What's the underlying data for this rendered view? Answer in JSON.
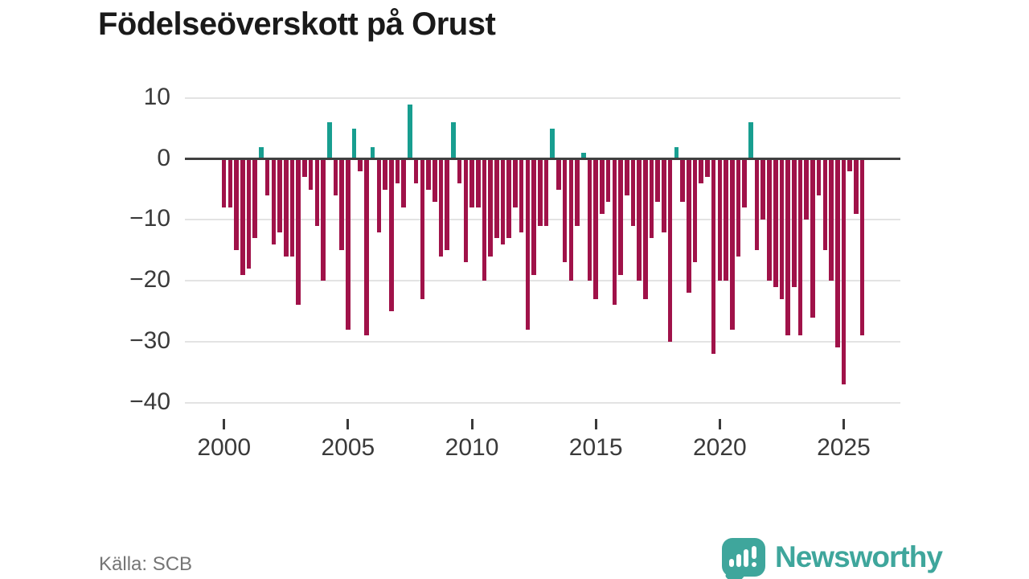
{
  "title": "Födelseöverskott på Orust",
  "source": "Källa: SCB",
  "logo": {
    "text": "Newsworthy"
  },
  "colors": {
    "bar_negative": "#a01249",
    "bar_positive": "#189e90",
    "logo_teal": "#3fa69c",
    "grid": "#e3e3e3",
    "zero_line": "#404040",
    "axis_text": "#3a3a3a",
    "source_text": "#757575"
  },
  "chart_data": {
    "type": "bar",
    "title": "Födelseöverskott på Orust",
    "xlabel": "",
    "ylabel": "",
    "x_start": "2000-Q1",
    "x_end": "2025-Q4",
    "frequency": "quarterly",
    "ylim": [
      -40,
      10
    ],
    "grid": true,
    "y_ticks": [
      10,
      0,
      -10,
      -20,
      -30,
      -40
    ],
    "y_tick_labels": [
      "10",
      "0",
      "−10",
      "−20",
      "−30",
      "−40"
    ],
    "x_tick_labels": [
      "2000",
      "2005",
      "2010",
      "2015",
      "2020",
      "2025"
    ],
    "x_tick_quarter_offsets": [
      0,
      20,
      40,
      60,
      80,
      100
    ],
    "series": [
      {
        "name": "Födelseöverskott",
        "values": [
          -8,
          -8,
          -15,
          -19,
          -18,
          -13,
          2,
          -6,
          -14,
          -12,
          -16,
          -16,
          -24,
          -3,
          -5,
          -11,
          -20,
          6,
          -6,
          -15,
          -28,
          5,
          -2,
          -29,
          2,
          -12,
          -5,
          -25,
          -4,
          -8,
          9,
          -4,
          -23,
          -5,
          -7,
          -16,
          -15,
          6,
          -4,
          -17,
          -8,
          -8,
          -20,
          -16,
          -13,
          -14,
          -13,
          -8,
          -12,
          -28,
          -19,
          -11,
          -11,
          5,
          -5,
          -17,
          -20,
          -11,
          1,
          -20,
          -23,
          -9,
          -7,
          -24,
          -19,
          -6,
          -11,
          -20,
          -23,
          -13,
          -7,
          -12,
          -30,
          2,
          -7,
          -22,
          -17,
          -4,
          -3,
          -32,
          -20,
          -20,
          -28,
          -16,
          -8,
          6,
          -15,
          -10,
          -20,
          -21,
          -23,
          -29,
          -21,
          -29,
          -10,
          -26,
          -6,
          -15,
          -20,
          -31,
          -37,
          -2,
          -9,
          -29
        ]
      }
    ]
  }
}
